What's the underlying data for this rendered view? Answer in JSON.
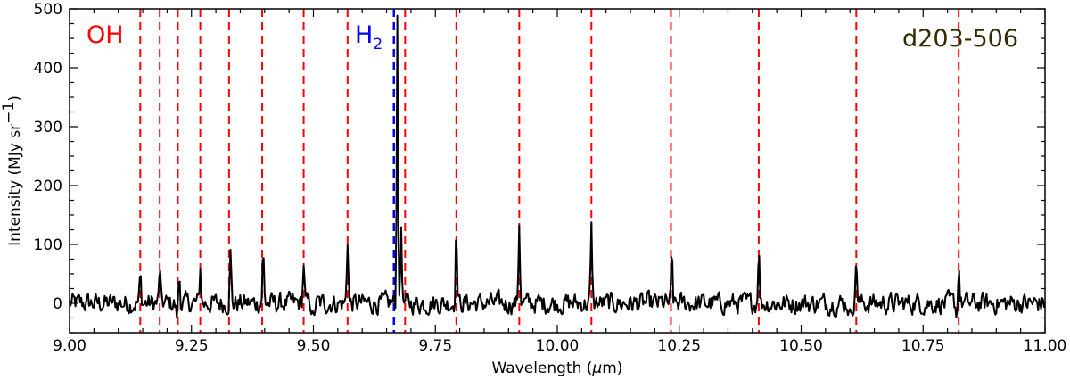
{
  "chart_data": {
    "type": "line",
    "title": "",
    "xlabel": "Wavelength (",
    "xlabel_symbol": "μ",
    "xlabel_unit": "m)",
    "ylabel": "Intensity (MJy sr",
    "ylabel_exponent": "−1",
    "ylabel_close": ")",
    "xlim": [
      9.0,
      11.0
    ],
    "ylim": [
      -50,
      500
    ],
    "x_ticks": [
      9.0,
      9.25,
      9.5,
      9.75,
      10.0,
      10.25,
      10.5,
      10.75,
      11.0
    ],
    "x_tick_labels": [
      "9.00",
      "9.25",
      "9.50",
      "9.75",
      "10.00",
      "10.25",
      "10.50",
      "10.75",
      "11.00"
    ],
    "y_ticks": [
      0,
      100,
      200,
      300,
      400,
      500
    ],
    "y_tick_labels": [
      "0",
      "100",
      "200",
      "300",
      "400",
      "500"
    ],
    "grid": false,
    "spectrum": {
      "color": "#000000",
      "noise_amplitude": 17,
      "baseline": 0,
      "peaks": [
        {
          "x": 9.145,
          "y": 45
        },
        {
          "x": 9.185,
          "y": 58
        },
        {
          "x": 9.225,
          "y": 48
        },
        {
          "x": 9.268,
          "y": 58
        },
        {
          "x": 9.33,
          "y": 85
        },
        {
          "x": 9.397,
          "y": 88
        },
        {
          "x": 9.48,
          "y": 70
        },
        {
          "x": 9.57,
          "y": 112
        },
        {
          "x": 9.672,
          "y": 500
        },
        {
          "x": 9.68,
          "y": 155
        },
        {
          "x": 9.793,
          "y": 128
        },
        {
          "x": 9.922,
          "y": 138
        },
        {
          "x": 10.07,
          "y": 123
        },
        {
          "x": 10.235,
          "y": 105
        },
        {
          "x": 10.413,
          "y": 97
        },
        {
          "x": 10.613,
          "y": 75
        },
        {
          "x": 10.823,
          "y": 77
        }
      ],
      "dips": [
        {
          "x": 9.5,
          "y": -48
        },
        {
          "x": 9.68,
          "y": -40
        },
        {
          "x": 10.235,
          "y": -40
        },
        {
          "x": 10.82,
          "y": -42
        },
        {
          "x": 10.6,
          "y": -38
        },
        {
          "x": 9.22,
          "y": -35
        }
      ]
    },
    "oh_lines": {
      "label": "OH",
      "color": "#ff0000",
      "x": [
        9.145,
        9.185,
        9.222,
        9.268,
        9.327,
        9.395,
        9.48,
        9.57,
        9.688,
        9.793,
        9.922,
        10.07,
        10.233,
        10.413,
        10.613,
        10.823
      ]
    },
    "h2_line": {
      "label": "H",
      "label_subscript": "2",
      "color": "#0000ff",
      "x": 9.665
    },
    "source_label": {
      "text": "d203-506",
      "color": "#332b00"
    }
  }
}
